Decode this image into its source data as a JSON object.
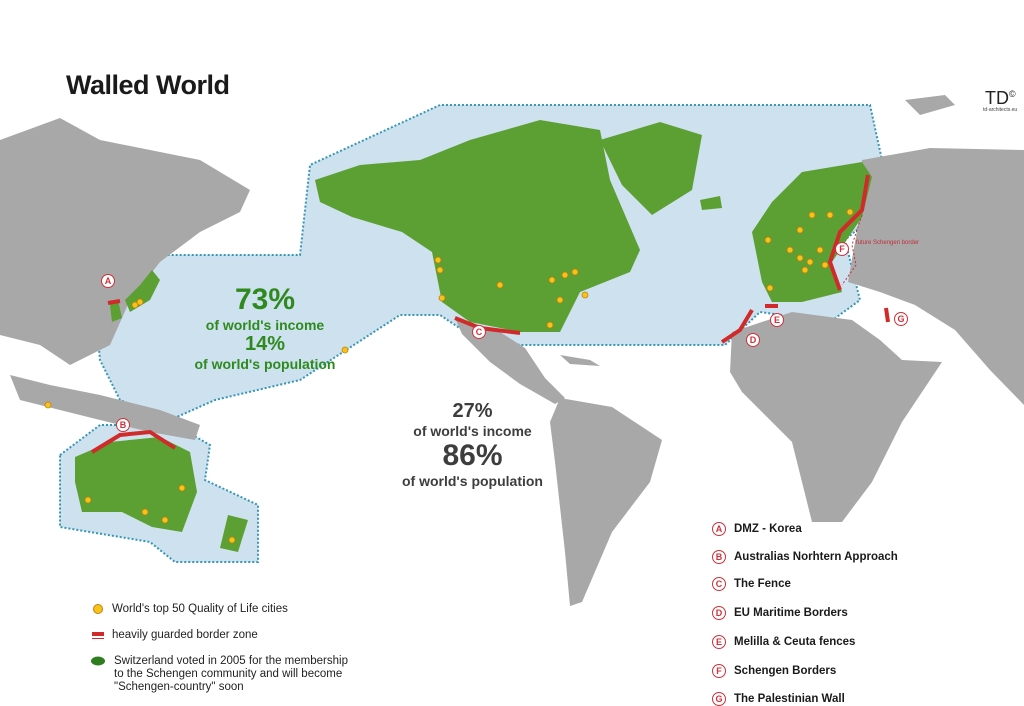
{
  "title": "Walled World",
  "logo": {
    "text": "TD",
    "mark": "©",
    "sub": "td-architects.eu"
  },
  "colors": {
    "walled_land": "#5c9f32",
    "other_land": "#a8a8a8",
    "zone": "#cde2ee",
    "zone_border": "#3596b5",
    "wall": "#d12a2a",
    "city": "#f5c419",
    "rich_text": "#2e8a1e"
  },
  "rich": {
    "income_pct": "73%",
    "income_label": "of world's income",
    "population_pct": "14%",
    "population_label": "of world's population"
  },
  "rest": {
    "income_pct": "27%",
    "income_label": "of world's income",
    "population_pct": "86%",
    "population_label": "of world's population"
  },
  "future_schengen_label": "future Schengen border",
  "walls": [
    {
      "letter": "A",
      "name": "DMZ - Korea"
    },
    {
      "letter": "B",
      "name": "Australias Norhtern Approach"
    },
    {
      "letter": "C",
      "name": "The Fence"
    },
    {
      "letter": "D",
      "name": "EU Maritime Borders"
    },
    {
      "letter": "E",
      "name": "Melilla & Ceuta fences"
    },
    {
      "letter": "F",
      "name": "Schengen Borders"
    },
    {
      "letter": "G",
      "name": "The Palestinian Wall"
    }
  ],
  "legend": [
    {
      "icon": "yellow-circle",
      "text": "World's top 50 Quality of Life cities"
    },
    {
      "icon": "red-bar",
      "text": "heavily guarded border zone"
    },
    {
      "icon": "green-switzerland-shape",
      "lines": [
        "Switzerland voted in 2005 for the membership",
        "to the Schengen community and will become",
        "\"Schengen-country\" soon"
      ]
    }
  ]
}
